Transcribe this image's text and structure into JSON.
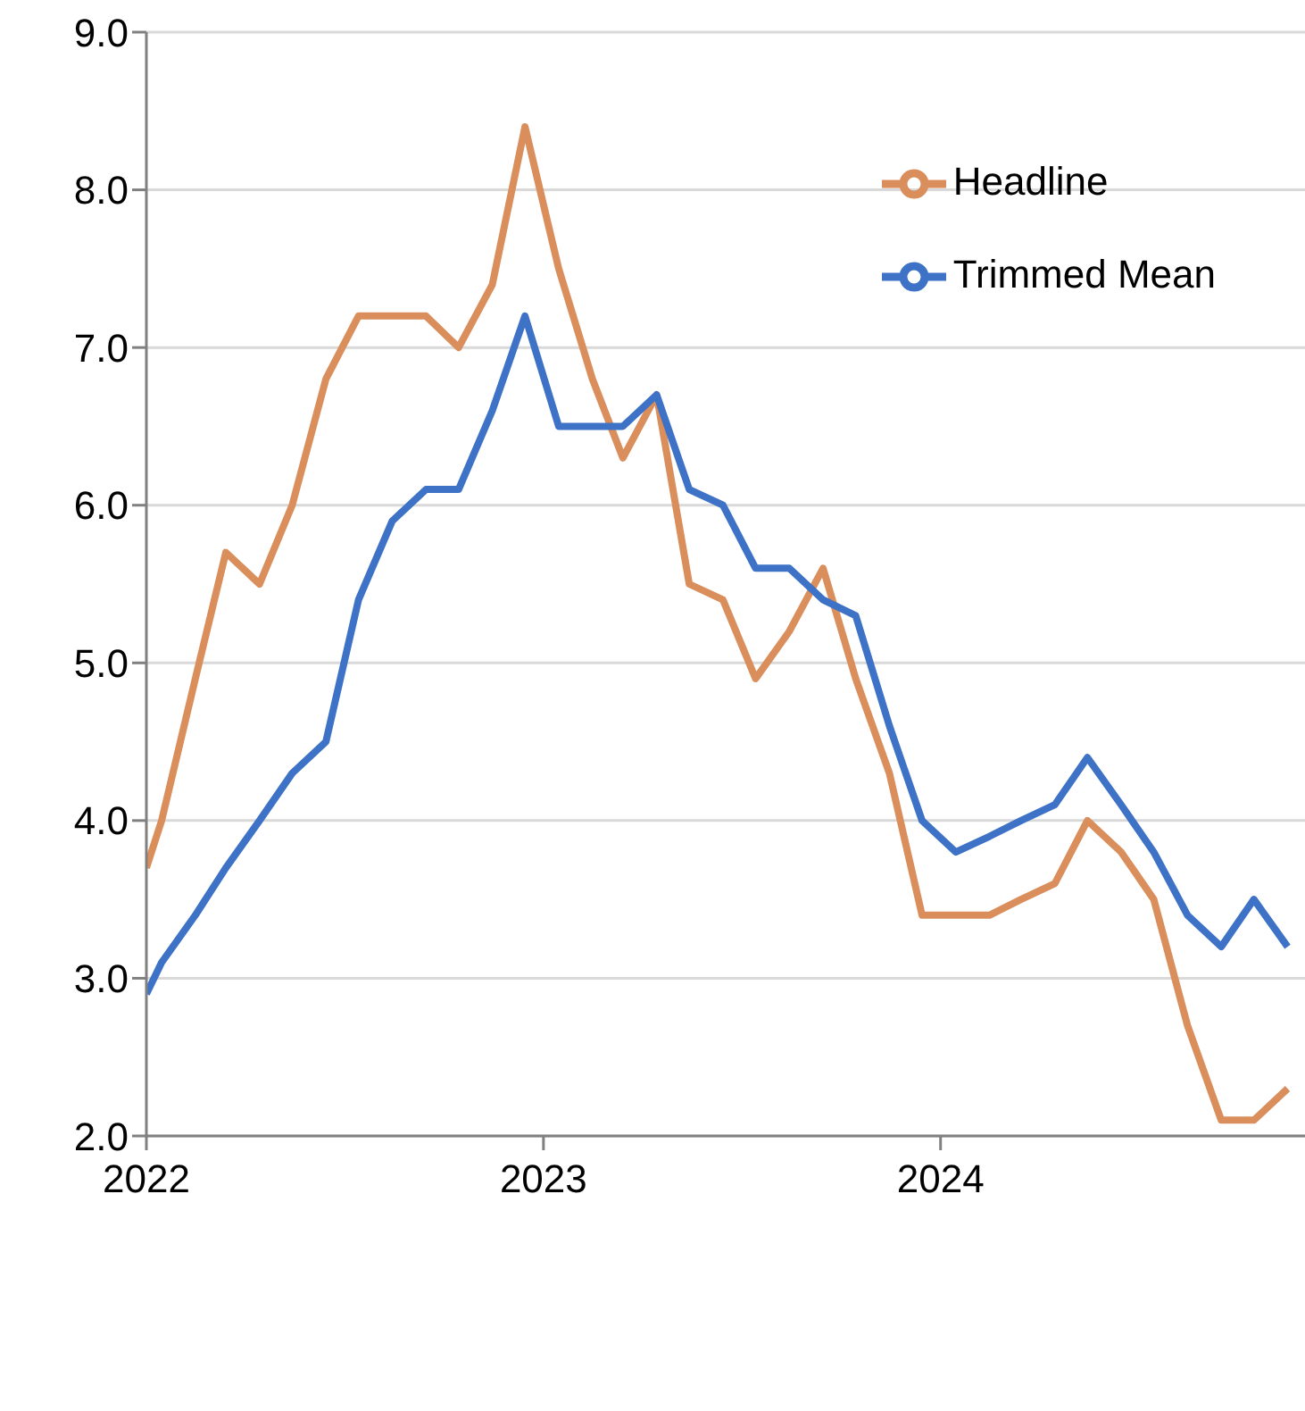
{
  "chart_data": {
    "type": "line",
    "x": [
      "2022-01-01",
      "2022-01-15",
      "2022-02-15",
      "2022-03-15",
      "2022-04-15",
      "2022-05-15",
      "2022-06-15",
      "2022-07-15",
      "2022-08-15",
      "2022-09-15",
      "2022-10-15",
      "2022-11-15",
      "2022-12-15",
      "2023-01-15",
      "2023-02-15",
      "2023-03-15",
      "2023-04-15",
      "2023-05-15",
      "2023-06-15",
      "2023-07-15",
      "2023-08-15",
      "2023-09-15",
      "2023-10-15",
      "2023-11-15",
      "2023-12-15",
      "2024-01-15",
      "2024-02-15",
      "2024-03-15",
      "2024-04-15",
      "2024-05-15",
      "2024-06-15",
      "2024-07-15",
      "2024-08-15",
      "2024-09-15",
      "2024-10-15",
      "2024-11-15"
    ],
    "series": [
      {
        "name": "Headline",
        "color": "#d98e5b",
        "values": [
          3.7,
          4.0,
          4.9,
          5.7,
          5.5,
          6.0,
          6.8,
          7.2,
          7.2,
          7.2,
          7.0,
          7.4,
          8.4,
          7.5,
          6.8,
          6.3,
          6.7,
          5.5,
          5.4,
          4.9,
          5.2,
          5.6,
          4.9,
          4.3,
          3.4,
          3.4,
          3.4,
          3.5,
          3.6,
          4.0,
          3.8,
          3.5,
          2.7,
          2.1,
          2.1,
          2.3
        ]
      },
      {
        "name": "Trimmed Mean",
        "color": "#3d72c6",
        "values": [
          2.9,
          3.1,
          3.4,
          3.7,
          4.0,
          4.3,
          4.5,
          5.4,
          5.9,
          6.1,
          6.1,
          6.6,
          7.2,
          6.5,
          6.5,
          6.5,
          6.7,
          6.1,
          6.0,
          5.6,
          5.6,
          5.4,
          5.3,
          4.6,
          4.0,
          3.8,
          3.9,
          4.0,
          4.1,
          4.4,
          4.1,
          3.8,
          3.4,
          3.2,
          3.5,
          3.2
        ]
      }
    ],
    "xlim": [
      "2022-01-01",
      "2024-12-01"
    ],
    "xticks": [
      "2022",
      "2023",
      "2024"
    ],
    "ylim": [
      2,
      9
    ],
    "yticks": [
      {
        "value": 2,
        "label": "2.0"
      },
      {
        "value": 3,
        "label": "3.0"
      },
      {
        "value": 4,
        "label": "4.0"
      },
      {
        "value": 5,
        "label": "5.0"
      },
      {
        "value": 6,
        "label": "6.0"
      },
      {
        "value": 7,
        "label": "7.0"
      },
      {
        "value": 8,
        "label": "8.0"
      },
      {
        "value": 9,
        "label": "9.0"
      }
    ],
    "grid": "y",
    "legend": "top right",
    "marker": "none",
    "line_style": "solid"
  }
}
